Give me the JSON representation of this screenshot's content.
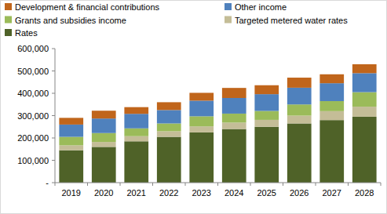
{
  "chart_data": {
    "type": "bar",
    "stacked": true,
    "grid": false,
    "legend": "top",
    "categories": [
      "2019",
      "2020",
      "2021",
      "2022",
      "2023",
      "2024",
      "2025",
      "2026",
      "2027",
      "2028"
    ],
    "series": [
      {
        "name": "Rates",
        "color": "#4f6228",
        "values": [
          145000,
          160000,
          185000,
          205000,
          225000,
          240000,
          250000,
          265000,
          280000,
          295000
        ]
      },
      {
        "name": "Targeted metered water rates",
        "color": "#c4bd97",
        "values": [
          22000,
          22000,
          23000,
          25000,
          27000,
          29000,
          31000,
          35000,
          40000,
          45000
        ]
      },
      {
        "name": "Grants and subsidies income",
        "color": "#9bbb59",
        "values": [
          38000,
          40000,
          35000,
          35000,
          45000,
          40000,
          40000,
          50000,
          45000,
          65000
        ]
      },
      {
        "name": "Other income",
        "color": "#4f81bd",
        "values": [
          55000,
          65000,
          65000,
          60000,
          70000,
          70000,
          75000,
          75000,
          80000,
          85000
        ]
      },
      {
        "name": "Development & financial contributions",
        "color": "#c0651b",
        "values": [
          30000,
          35000,
          30000,
          35000,
          35000,
          45000,
          40000,
          45000,
          40000,
          40000
        ]
      }
    ],
    "ylim": [
      0,
      600000
    ],
    "yticks": [
      {
        "value": 0,
        "label": "-"
      },
      {
        "value": 100000,
        "label": "100,000"
      },
      {
        "value": 200000,
        "label": "200,000"
      },
      {
        "value": 300000,
        "label": "300,000"
      },
      {
        "value": 400000,
        "label": "400,000"
      },
      {
        "value": 500000,
        "label": "500,000"
      },
      {
        "value": 600000,
        "label": "600,000"
      }
    ]
  }
}
